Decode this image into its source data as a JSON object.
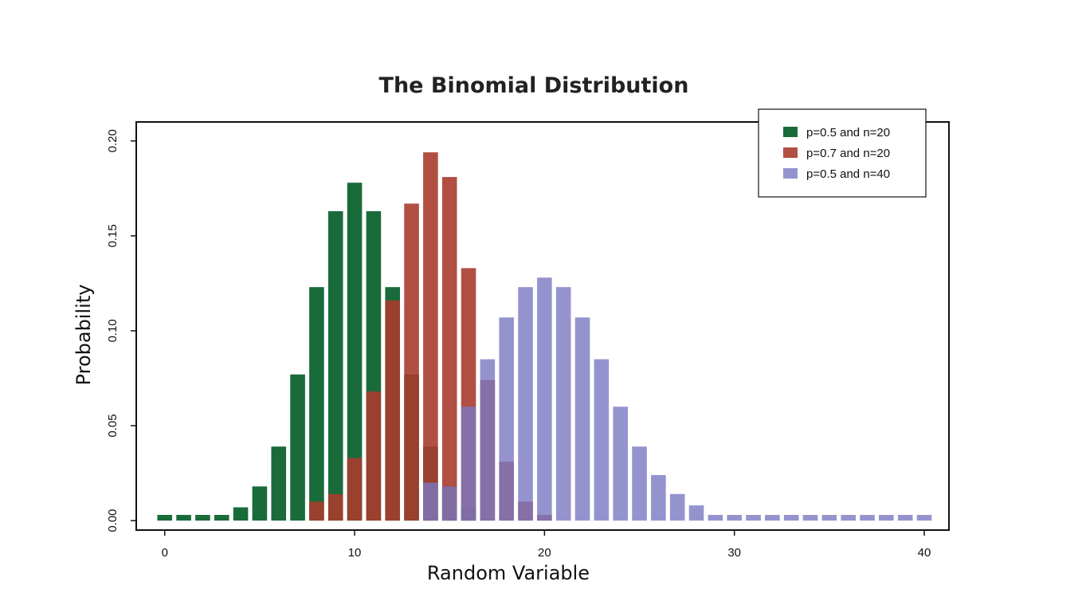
{
  "chart_data": {
    "type": "bar",
    "title": "The Binomial Distribution",
    "xlabel": "Random Variable",
    "ylabel": "Probability",
    "xlim": [
      -1.5,
      41.3
    ],
    "ylim": [
      -0.005,
      0.21
    ],
    "xticks": [
      0,
      10,
      20,
      30,
      40
    ],
    "xtick_labels": [
      "0",
      "10",
      "20",
      "30",
      "40"
    ],
    "yticks": [
      0.0,
      0.05,
      0.1,
      0.15,
      0.2
    ],
    "ytick_labels": [
      "0.00",
      "0.05",
      "0.10",
      "0.15",
      "0.20"
    ],
    "legend_position": "top-right",
    "grid": false,
    "series": [
      {
        "name": "p=0.5 and n=20",
        "color": "#1a6b3a",
        "opacity": 1.0,
        "x": [
          0,
          1,
          2,
          3,
          4,
          5,
          6,
          7,
          8,
          9,
          10,
          11,
          12,
          13,
          14,
          15,
          16,
          17,
          18,
          19,
          20
        ],
        "values": [
          0.003,
          0.003,
          0.003,
          0.003,
          0.007,
          0.018,
          0.039,
          0.077,
          0.123,
          0.163,
          0.178,
          0.163,
          0.123,
          0.077,
          0.039,
          0.018,
          0.007,
          0,
          0,
          0,
          0
        ]
      },
      {
        "name": "p=0.7 and n=20",
        "color": "#a83c2e",
        "opacity": 0.9,
        "x": [
          0,
          1,
          2,
          3,
          4,
          5,
          6,
          7,
          8,
          9,
          10,
          11,
          12,
          13,
          14,
          15,
          16,
          17,
          18,
          19,
          20
        ],
        "values": [
          0,
          0,
          0,
          0,
          0,
          0,
          0,
          0,
          0.01,
          0.014,
          0.033,
          0.068,
          0.116,
          0.167,
          0.194,
          0.181,
          0.133,
          0.074,
          0.031,
          0.01,
          0.003
        ]
      },
      {
        "name": "p=0.5 and n=40",
        "color": "#7b78c2",
        "opacity": 0.8,
        "x": [
          0,
          1,
          2,
          3,
          4,
          5,
          6,
          7,
          8,
          9,
          10,
          11,
          12,
          13,
          14,
          15,
          16,
          17,
          18,
          19,
          20,
          21,
          22,
          23,
          24,
          25,
          26,
          27,
          28,
          29,
          30,
          31,
          32,
          33,
          34,
          35,
          36,
          37,
          38,
          39,
          40
        ],
        "values": [
          0,
          0,
          0,
          0,
          0,
          0,
          0,
          0,
          0,
          0,
          0,
          0,
          0,
          0,
          0.02,
          0.018,
          0.06,
          0.085,
          0.107,
          0.123,
          0.128,
          0.123,
          0.107,
          0.085,
          0.06,
          0.039,
          0.024,
          0.014,
          0.008,
          0.003,
          0.003,
          0.003,
          0.003,
          0.003,
          0.003,
          0.003,
          0.003,
          0.003,
          0.003,
          0.003,
          0.003
        ]
      }
    ]
  }
}
